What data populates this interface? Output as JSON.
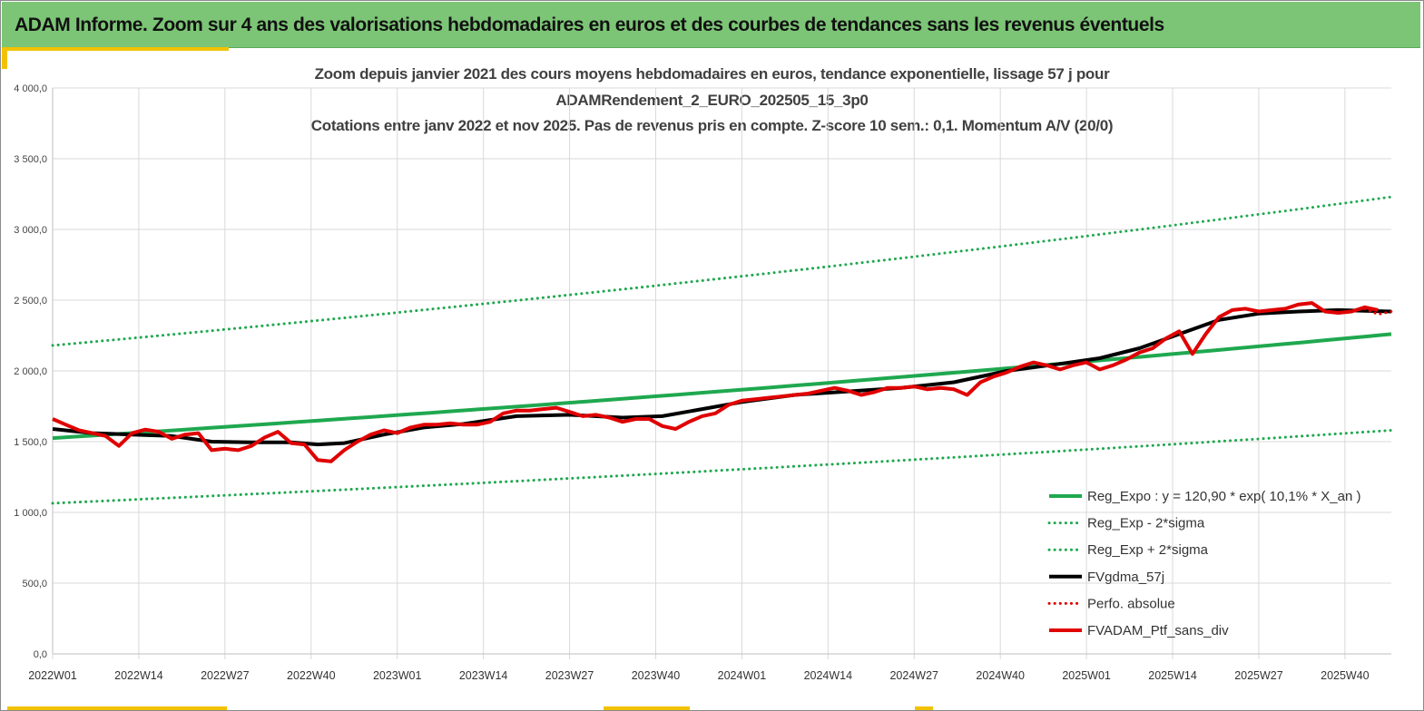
{
  "header": {
    "title": "ADAM Informe. Zoom sur 4 ans des valorisations hebdomadaires en euros et des courbes de tendances sans les revenus éventuels"
  },
  "chart_data": {
    "type": "line",
    "title_lines": [
      "Zoom depuis janvier 2021 des cours moyens hebdomadaires  en euros, tendance exponentielle, lissage 57 j pour",
      "ADAMRendement_2_EURO_202505_15_3p0",
      "Cotations  entre janv 2022 et nov 2025. Pas de revenus pris en compte. Z-score 10 sem.: 0,1. Momentum  A/V (20/0)"
    ],
    "ylim": [
      0,
      4000
    ],
    "y_ticks": [
      0,
      500,
      1000,
      1500,
      2000,
      2500,
      3000,
      3500,
      4000
    ],
    "y_tick_labels": [
      "0,0",
      "500,0",
      "1 000,0",
      "1 500,0",
      "2 000,0",
      "2 500,0",
      "3 000,0",
      "3 500,0",
      "4 000,0"
    ],
    "x_range": [
      0,
      202
    ],
    "x_ticks": [
      0,
      13,
      26,
      39,
      52,
      65,
      78,
      91,
      104,
      117,
      130,
      143,
      156,
      169,
      182,
      195
    ],
    "x_tick_labels": [
      "2022W01",
      "2022W14",
      "2022W27",
      "2022W40",
      "2023W01",
      "2023W14",
      "2023W27",
      "2023W40",
      "2024W01",
      "2024W14",
      "2024W27",
      "2024W40",
      "2025W01",
      "2025W14",
      "2025W27",
      "2025W40"
    ],
    "gridlines": true,
    "legend_position": "bottom-right",
    "series": [
      {
        "name": "Reg_Expo : y = 120,90 * exp( 10,1% *  X_an )",
        "color": "#1fa84f",
        "style": "solid",
        "width": 4,
        "x": [
          0,
          202
        ],
        "values": [
          1525,
          2260
        ],
        "curve": "exp"
      },
      {
        "name": "Reg_Exp - 2*sigma",
        "color": "#1fa84f",
        "style": "dotted",
        "width": 3,
        "x": [
          0,
          202
        ],
        "values": [
          1065,
          1580
        ],
        "curve": "exp"
      },
      {
        "name": "Reg_Exp + 2*sigma",
        "color": "#1fa84f",
        "style": "dotted",
        "width": 3,
        "x": [
          0,
          202
        ],
        "values": [
          2180,
          3230
        ],
        "curve": "exp"
      },
      {
        "name": "FVgdma_57j",
        "color": "#000000",
        "style": "solid",
        "width": 4,
        "x": [
          0,
          6,
          12,
          18,
          24,
          30,
          36,
          40,
          44,
          50,
          56,
          62,
          70,
          78,
          86,
          92,
          98,
          104,
          112,
          120,
          128,
          136,
          144,
          152,
          158,
          164,
          170,
          176,
          182,
          188,
          194,
          198,
          202
        ],
        "values": [
          1590,
          1560,
          1550,
          1540,
          1500,
          1495,
          1495,
          1480,
          1490,
          1550,
          1600,
          1625,
          1680,
          1690,
          1670,
          1680,
          1730,
          1780,
          1830,
          1855,
          1880,
          1920,
          2000,
          2050,
          2090,
          2160,
          2260,
          2360,
          2405,
          2420,
          2430,
          2425,
          2420
        ]
      },
      {
        "name": "Perfo. absolue",
        "color": "#e00000",
        "style": "dotted",
        "width": 3,
        "x": [
          198,
          200,
          202
        ],
        "values": [
          2440,
          2400,
          2420
        ]
      },
      {
        "name": "FVADAM_Ptf_sans_div",
        "color": "#e00000",
        "style": "solid",
        "width": 4,
        "x": [
          0,
          2,
          4,
          6,
          8,
          10,
          12,
          14,
          16,
          18,
          20,
          22,
          24,
          26,
          28,
          30,
          32,
          34,
          36,
          38,
          40,
          42,
          44,
          46,
          48,
          50,
          52,
          54,
          56,
          58,
          60,
          62,
          64,
          66,
          68,
          70,
          72,
          74,
          76,
          78,
          80,
          82,
          84,
          86,
          88,
          90,
          92,
          94,
          96,
          98,
          100,
          102,
          104,
          106,
          108,
          110,
          112,
          114,
          116,
          118,
          120,
          122,
          124,
          126,
          128,
          130,
          132,
          134,
          136,
          138,
          140,
          142,
          144,
          146,
          148,
          150,
          152,
          154,
          156,
          158,
          160,
          162,
          164,
          166,
          168,
          170,
          172,
          174,
          176,
          178,
          180,
          182,
          184,
          186,
          188,
          190,
          192,
          194,
          196,
          198,
          200
        ],
        "values": [
          1660,
          1620,
          1580,
          1560,
          1540,
          1470,
          1560,
          1585,
          1570,
          1520,
          1550,
          1560,
          1440,
          1450,
          1440,
          1470,
          1530,
          1570,
          1490,
          1480,
          1370,
          1360,
          1440,
          1500,
          1550,
          1580,
          1560,
          1600,
          1620,
          1620,
          1630,
          1620,
          1620,
          1640,
          1700,
          1720,
          1720,
          1730,
          1740,
          1710,
          1680,
          1690,
          1670,
          1640,
          1660,
          1660,
          1610,
          1590,
          1640,
          1680,
          1700,
          1760,
          1790,
          1800,
          1810,
          1820,
          1830,
          1840,
          1860,
          1880,
          1860,
          1830,
          1850,
          1880,
          1880,
          1890,
          1870,
          1880,
          1870,
          1830,
          1920,
          1960,
          1990,
          2030,
          2060,
          2040,
          2010,
          2040,
          2060,
          2010,
          2040,
          2080,
          2130,
          2160,
          2230,
          2280,
          2120,
          2260,
          2380,
          2430,
          2440,
          2420,
          2430,
          2440,
          2470,
          2480,
          2420,
          2410,
          2420,
          2450,
          2430
        ]
      }
    ]
  }
}
